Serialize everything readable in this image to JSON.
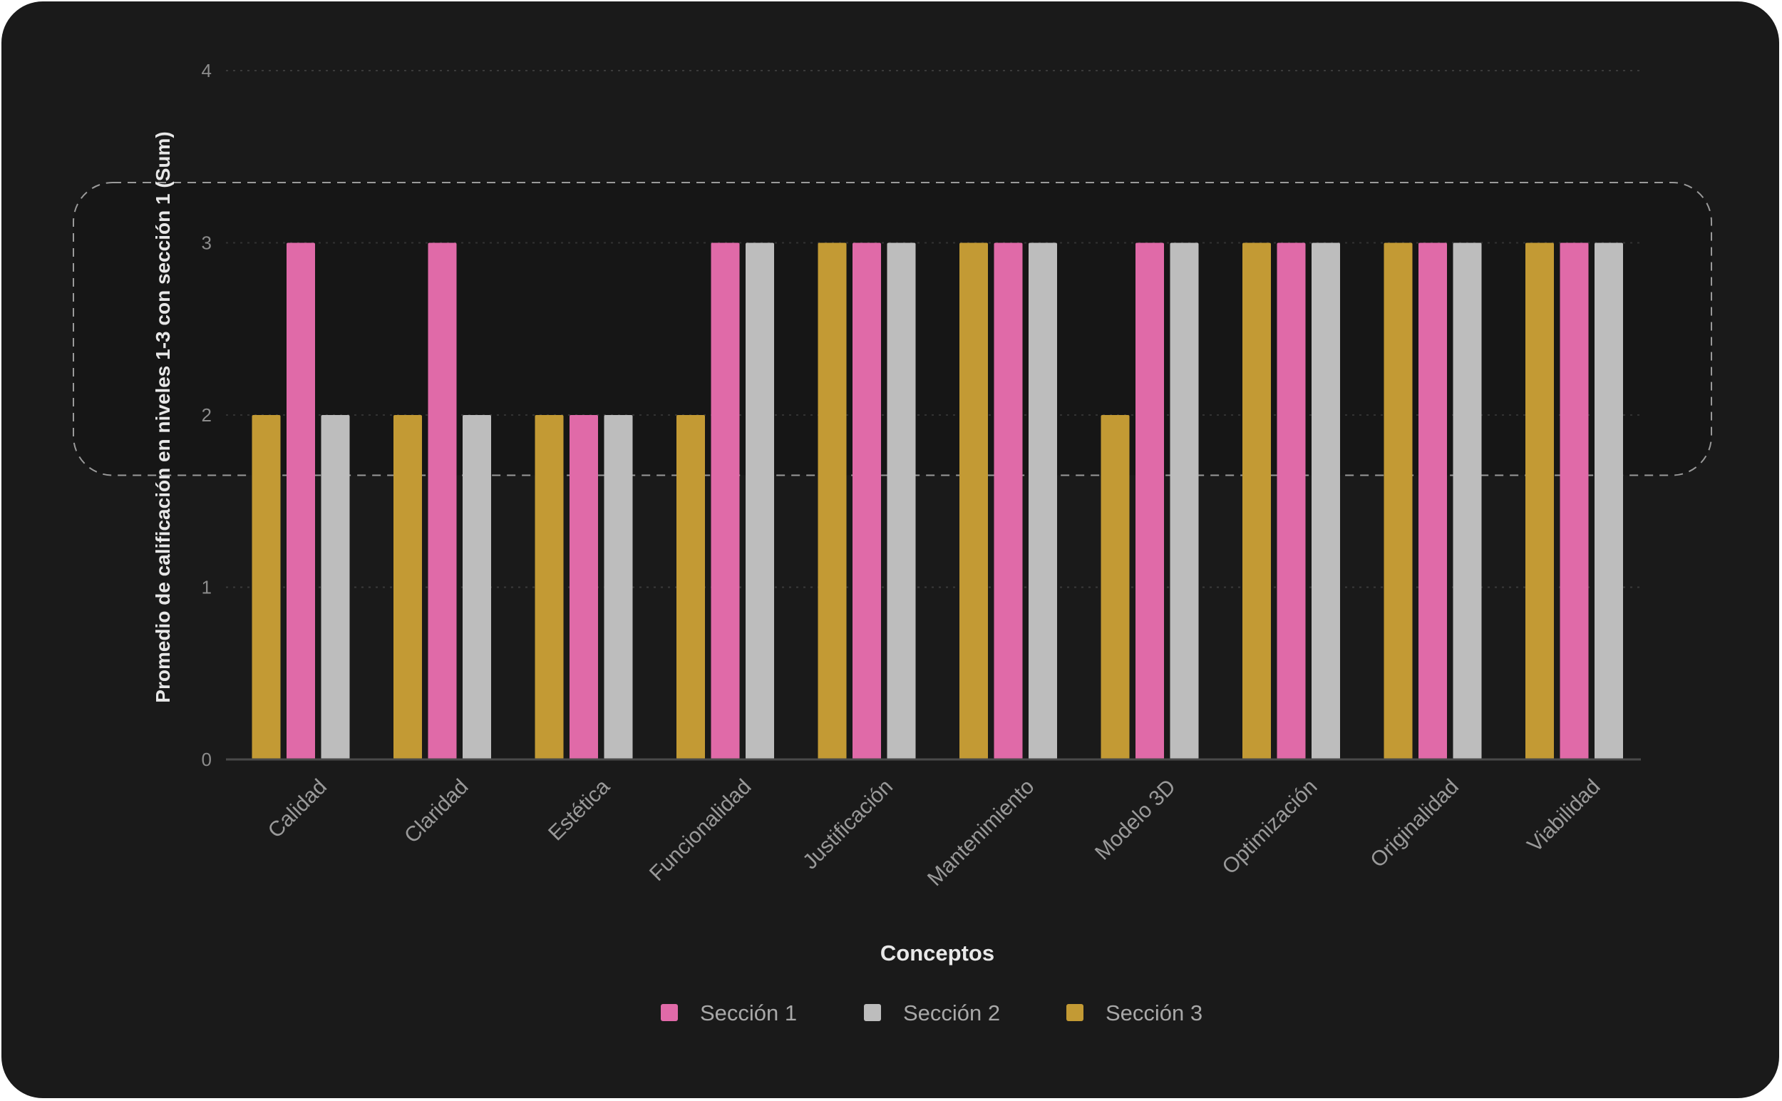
{
  "chart_data": {
    "type": "bar",
    "title": "",
    "xlabel": "Conceptos",
    "ylabel": "Promedio de calificación en niveles 1-3 con sección 1 (Sum)",
    "ylim": [
      0,
      4
    ],
    "yticks": [
      0,
      1,
      2,
      3,
      4
    ],
    "grid": true,
    "legend_position": "bottom",
    "categories": [
      "Calidad",
      "Claridad",
      "Estética",
      "Funcionalidad",
      "Justificación",
      "Mantenimiento",
      "Modelo 3D",
      "Optimización",
      "Originalidad",
      "Viabilidad"
    ],
    "bar_order": [
      "Sección 3",
      "Sección 1",
      "Sección 2"
    ],
    "series": [
      {
        "name": "Sección 1",
        "color": "#e06aa8",
        "values": [
          3,
          3,
          2,
          3,
          3,
          3,
          3,
          3,
          3,
          3
        ]
      },
      {
        "name": "Sección 2",
        "color": "#bdbdbd",
        "values": [
          2,
          2,
          2,
          3,
          3,
          3,
          3,
          3,
          3,
          3
        ]
      },
      {
        "name": "Sección 3",
        "color": "#c39a34",
        "values": [
          2,
          2,
          2,
          2,
          3,
          3,
          2,
          3,
          3,
          3
        ]
      }
    ],
    "highlight_region": {
      "y_range": [
        1.65,
        3.35
      ],
      "style": "dashed rounded box"
    }
  }
}
